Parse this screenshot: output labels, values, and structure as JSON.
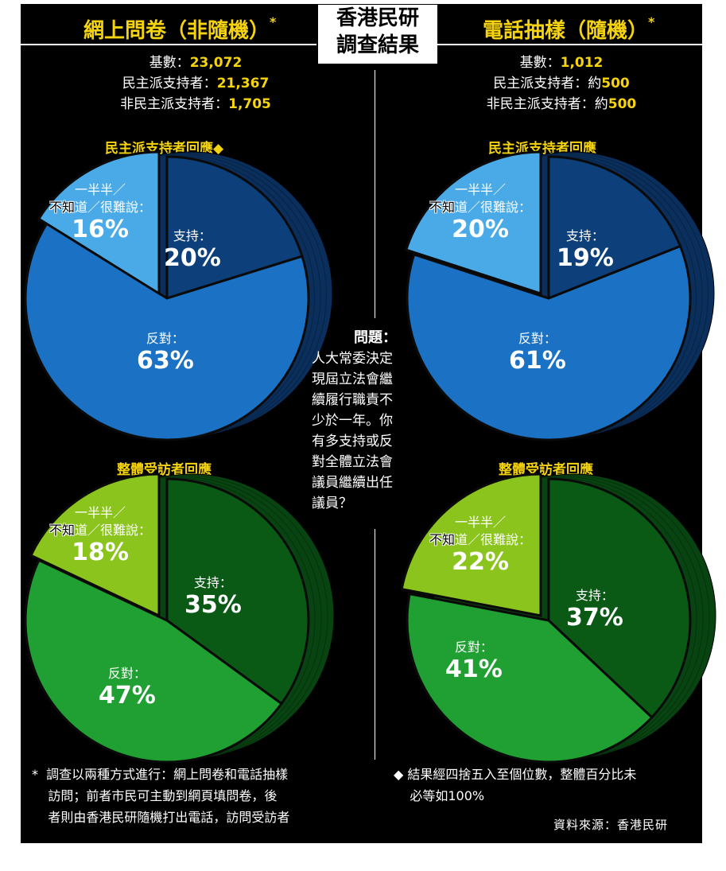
{
  "headers": {
    "left": "網上問卷（非隨機）",
    "left_mark": "*",
    "center": [
      "香港民研",
      "調查結果"
    ],
    "right": "電話抽樣（隨機）",
    "right_mark": "*"
  },
  "stats_left": [
    {
      "label": "基數：",
      "value": "23,072"
    },
    {
      "label": "民主派支持者：",
      "value": "21,367"
    },
    {
      "label": "非民主派支持者：",
      "value": "1,705"
    }
  ],
  "stats_right": [
    {
      "label": "基數：",
      "value": "1,012"
    },
    {
      "label": "民主派支持者：約",
      "value": "500"
    },
    {
      "label": "非民主派支持者：約",
      "value": "500"
    }
  ],
  "question": {
    "heading": "問題：",
    "lines": [
      "人大常委決定",
      "現屆立法會繼",
      "續履行職責不",
      "少於一年。你",
      "有多支持或反",
      "對全體立法會",
      "議員繼續出任",
      "議員？"
    ]
  },
  "footnotes": {
    "left": [
      "*  調查以兩種方式進行：網上問卷和電話抽樣",
      "    訪問；前者市民可主動到網頁填問卷，後",
      "    者則由香港民研隨機打出電話，訪問受訪者"
    ],
    "right": [
      "◆ 結果經四捨五入至個位數，整體百分比未",
      "    必等如100%"
    ]
  },
  "source": "資料來源：香港民研",
  "colors": {
    "blue_support": "#0d3f7a",
    "blue_oppose": "#1b72c4",
    "blue_unsure": "#4aaae8",
    "green_support": "#0a5a16",
    "green_oppose": "#20a032",
    "green_unsure": "#8cc41e",
    "accent_yellow": "#f5d40f"
  },
  "chart_data": [
    {
      "type": "pie",
      "title": "民主派支持者回應◆",
      "categories": [
        "支持：",
        "反對：",
        "一半半／不知道／很難說："
      ],
      "values": [
        20,
        63,
        16
      ],
      "unit": "%"
    },
    {
      "type": "pie",
      "title": "民主派支持者回應",
      "categories": [
        "支持：",
        "反對：",
        "一半半／不知道／很難說："
      ],
      "values": [
        19,
        61,
        20
      ],
      "unit": "%"
    },
    {
      "type": "pie",
      "title": "整體受訪者回應",
      "categories": [
        "支持：",
        "反對：",
        "一半半／不知道／很難說："
      ],
      "values": [
        35,
        47,
        18
      ],
      "unit": "%"
    },
    {
      "type": "pie",
      "title": "整體受訪者回應",
      "categories": [
        "支持：",
        "反對：",
        "一半半／不知道／很難說："
      ],
      "values": [
        37,
        41,
        22
      ],
      "unit": "%"
    }
  ],
  "labels": {
    "support": "支持：",
    "oppose": "反對：",
    "unsure_1": "一半半／",
    "unsure_2a": "不知",
    "unsure_2b": "道／很難說："
  }
}
